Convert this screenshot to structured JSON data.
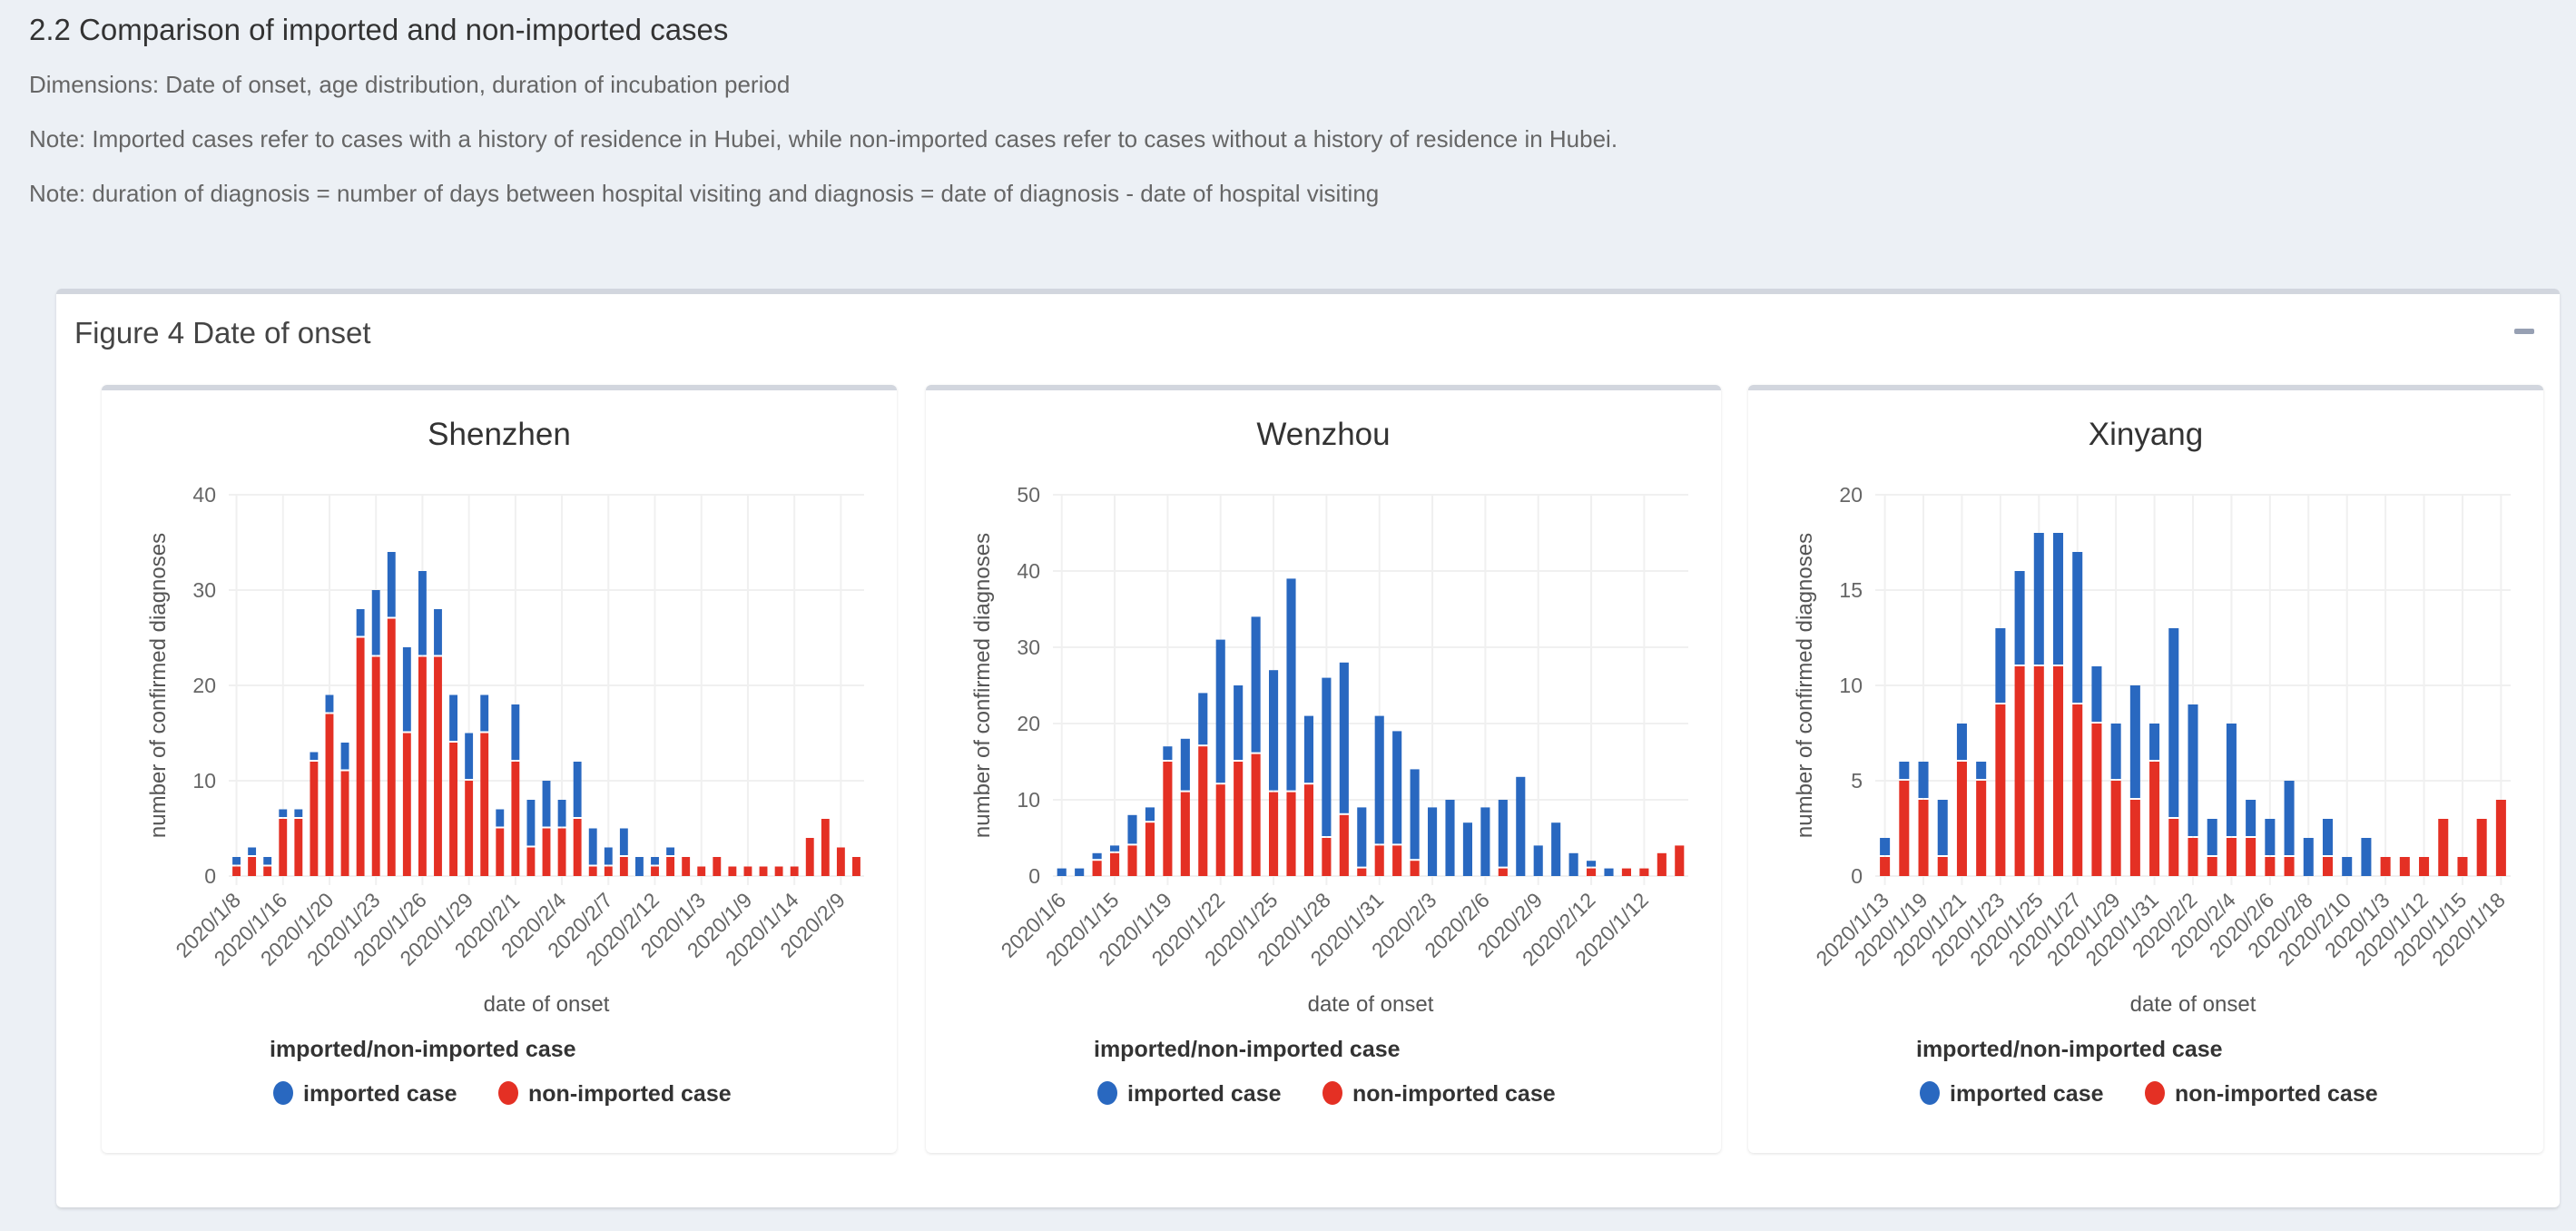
{
  "section": {
    "title": "2.2 Comparison of imported and non-imported cases",
    "paragraphs": [
      "Dimensions: Date of onset, age distribution, duration of incubation period",
      "Note: Imported cases refer to cases with a history of residence in Hubei, while non-imported cases refer to cases without a history of residence in Hubei.",
      "Note: duration of diagnosis = number of days between hospital visiting and diagnosis = date of diagnosis - date of hospital visiting"
    ]
  },
  "box": {
    "title": "Figure 4 Date of onset",
    "collapse_icon": "minus-icon"
  },
  "colors": {
    "imported": "#2968c0",
    "non_imported": "#e43024"
  },
  "chart_data": [
    {
      "type": "bar",
      "stacked": true,
      "title": "Shenzhen",
      "xlabel": "date of onset",
      "ylabel": "number of confirmed diagnoses",
      "ylim": [
        0,
        40
      ],
      "yticks": [
        0,
        10,
        20,
        30,
        40
      ],
      "tick_every": 3,
      "tick_labels": [
        "2020/1/8",
        "2020/1/16",
        "2020/1/20",
        "2020/1/23",
        "2020/1/26",
        "2020/1/29",
        "2020/2/1",
        "2020/2/4",
        "2020/2/7",
        "2020/2/12",
        "2020/1/3",
        "2020/1/9",
        "2020/1/14",
        "2020/2/9"
      ],
      "legend": {
        "title": "imported/non-imported case",
        "position": "bottom"
      },
      "series": [
        {
          "name": "non-imported case",
          "values": [
            1,
            2,
            1,
            6,
            6,
            12,
            17,
            11,
            25,
            23,
            27,
            15,
            23,
            23,
            14,
            10,
            15,
            5,
            12,
            3,
            5,
            5,
            6,
            1,
            1,
            2,
            0,
            1,
            2,
            2,
            1,
            2,
            1,
            1,
            1,
            1,
            1,
            4,
            6,
            3,
            2
          ]
        },
        {
          "name": "imported case",
          "values": [
            1,
            1,
            1,
            1,
            1,
            1,
            2,
            3,
            3,
            7,
            7,
            9,
            9,
            5,
            5,
            5,
            4,
            2,
            6,
            5,
            5,
            3,
            6,
            4,
            2,
            3,
            2,
            1,
            1,
            0,
            0,
            0,
            0,
            0,
            0,
            0,
            0,
            0,
            0,
            0,
            0
          ]
        }
      ]
    },
    {
      "type": "bar",
      "stacked": true,
      "title": "Wenzhou",
      "xlabel": "date of onset",
      "ylabel": "number of confirmed diagnoses",
      "ylim": [
        0,
        50
      ],
      "yticks": [
        0,
        10,
        20,
        30,
        40,
        50
      ],
      "tick_every": 3,
      "tick_labels": [
        "2020/1/6",
        "2020/1/15",
        "2020/1/19",
        "2020/1/22",
        "2020/1/25",
        "2020/1/28",
        "2020/1/31",
        "2020/2/3",
        "2020/2/6",
        "2020/2/9",
        "2020/2/12",
        "2020/1/12"
      ],
      "legend": {
        "title": "imported/non-imported case",
        "position": "bottom"
      },
      "series": [
        {
          "name": "non-imported case",
          "values": [
            0,
            0,
            2,
            3,
            4,
            7,
            15,
            11,
            17,
            12,
            15,
            16,
            11,
            11,
            12,
            5,
            8,
            1,
            4,
            4,
            2,
            0,
            0,
            0,
            0,
            1,
            0,
            0,
            0,
            0,
            1,
            0,
            1,
            1,
            3,
            4
          ]
        },
        {
          "name": "imported case",
          "values": [
            1,
            1,
            1,
            1,
            4,
            2,
            2,
            7,
            7,
            19,
            10,
            18,
            16,
            28,
            9,
            21,
            20,
            8,
            17,
            15,
            12,
            9,
            10,
            7,
            9,
            9,
            13,
            4,
            7,
            3,
            1,
            1,
            0,
            0,
            0,
            0
          ]
        }
      ]
    },
    {
      "type": "bar",
      "stacked": true,
      "title": "Xinyang",
      "xlabel": "date of onset",
      "ylabel": "number of confirmed diagnoses",
      "ylim": [
        0,
        20
      ],
      "yticks": [
        0,
        5,
        10,
        15,
        20
      ],
      "tick_every": 2,
      "tick_labels": [
        "2020/1/13",
        "2020/1/19",
        "2020/1/21",
        "2020/1/23",
        "2020/1/25",
        "2020/1/27",
        "2020/1/29",
        "2020/1/31",
        "2020/2/2",
        "2020/2/4",
        "2020/2/6",
        "2020/2/8",
        "2020/2/10",
        "2020/1/3",
        "2020/1/12",
        "2020/1/15",
        "2020/1/18"
      ],
      "legend": {
        "title": "imported/non-imported case",
        "position": "bottom"
      },
      "series": [
        {
          "name": "non-imported case",
          "values": [
            1,
            5,
            4,
            1,
            6,
            5,
            9,
            11,
            11,
            11,
            9,
            8,
            5,
            4,
            6,
            3,
            2,
            1,
            2,
            2,
            1,
            1,
            0,
            1,
            0,
            0,
            1,
            1,
            1,
            3,
            1,
            3,
            4
          ]
        },
        {
          "name": "imported case",
          "values": [
            1,
            1,
            2,
            3,
            2,
            1,
            4,
            5,
            7,
            7,
            8,
            3,
            3,
            6,
            2,
            10,
            7,
            2,
            6,
            2,
            2,
            4,
            2,
            2,
            1,
            2,
            0,
            0,
            0,
            0,
            0,
            0,
            0
          ]
        }
      ]
    }
  ]
}
